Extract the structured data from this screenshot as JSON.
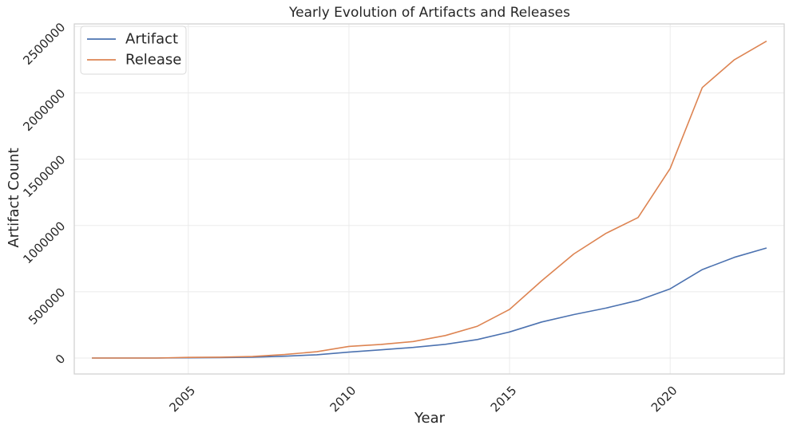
{
  "chart_data": {
    "type": "line",
    "title": "Yearly Evolution of Artifacts and Releases",
    "xlabel": "Year",
    "ylabel": "Artifact Count",
    "xlim": [
      2001.45,
      2023.55
    ],
    "ylim": [
      -120000,
      2520000
    ],
    "x_ticks": [
      2005,
      2010,
      2015,
      2020
    ],
    "x_tick_labels": [
      "2005",
      "2010",
      "2015",
      "2020"
    ],
    "y_ticks": [
      0,
      500000,
      1000000,
      1500000,
      2000000,
      2500000
    ],
    "y_tick_labels": [
      "0",
      "500000",
      "1000000",
      "1500000",
      "2000000",
      "2500000"
    ],
    "grid": true,
    "legend_position": "top-left",
    "x": [
      2002,
      2003,
      2004,
      2005,
      2006,
      2007,
      2008,
      2009,
      2010,
      2011,
      2012,
      2013,
      2014,
      2015,
      2016,
      2017,
      2018,
      2019,
      2020,
      2021,
      2022,
      2023
    ],
    "series": [
      {
        "name": "Artifact",
        "color": "#4c72b0",
        "values": [
          0,
          0,
          0,
          2000,
          4000,
          7000,
          14000,
          25000,
          45000,
          62000,
          80000,
          104000,
          140000,
          197000,
          272000,
          328000,
          377000,
          435000,
          522000,
          667000,
          760000,
          830000
        ]
      },
      {
        "name": "Release",
        "color": "#dd8452",
        "values": [
          0,
          0,
          0,
          5000,
          7000,
          12000,
          27000,
          48000,
          88000,
          103000,
          125000,
          170000,
          240000,
          367000,
          583000,
          785000,
          940000,
          1060000,
          1430000,
          2040000,
          2250000,
          2390000
        ]
      }
    ]
  }
}
